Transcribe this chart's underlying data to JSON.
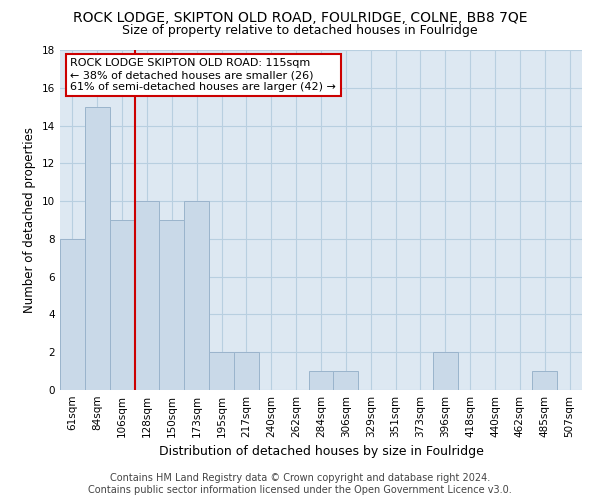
{
  "title": "ROCK LODGE, SKIPTON OLD ROAD, FOULRIDGE, COLNE, BB8 7QE",
  "subtitle": "Size of property relative to detached houses in Foulridge",
  "xlabel": "Distribution of detached houses by size in Foulridge",
  "ylabel": "Number of detached properties",
  "categories": [
    "61sqm",
    "84sqm",
    "106sqm",
    "128sqm",
    "150sqm",
    "173sqm",
    "195sqm",
    "217sqm",
    "240sqm",
    "262sqm",
    "284sqm",
    "306sqm",
    "329sqm",
    "351sqm",
    "373sqm",
    "396sqm",
    "418sqm",
    "440sqm",
    "462sqm",
    "485sqm",
    "507sqm"
  ],
  "values": [
    8,
    15,
    9,
    10,
    9,
    10,
    2,
    2,
    0,
    0,
    1,
    1,
    0,
    0,
    0,
    2,
    0,
    0,
    0,
    1,
    0
  ],
  "bar_color": "#c9d9e8",
  "bar_edge_color": "#9ab4cc",
  "vline_x_index": 2.5,
  "vline_color": "#cc0000",
  "annotation_box_text": "ROCK LODGE SKIPTON OLD ROAD: 115sqm\n← 38% of detached houses are smaller (26)\n61% of semi-detached houses are larger (42) →",
  "annotation_box_color": "#cc0000",
  "ylim": [
    0,
    18
  ],
  "yticks": [
    0,
    2,
    4,
    6,
    8,
    10,
    12,
    14,
    16,
    18
  ],
  "grid_color": "#b8cfe0",
  "bg_color": "#dde8f2",
  "footer_text": "Contains HM Land Registry data © Crown copyright and database right 2024.\nContains public sector information licensed under the Open Government Licence v3.0.",
  "title_fontsize": 10,
  "subtitle_fontsize": 9,
  "xlabel_fontsize": 9,
  "ylabel_fontsize": 8.5,
  "tick_fontsize": 7.5,
  "annot_fontsize": 8,
  "footer_fontsize": 7
}
